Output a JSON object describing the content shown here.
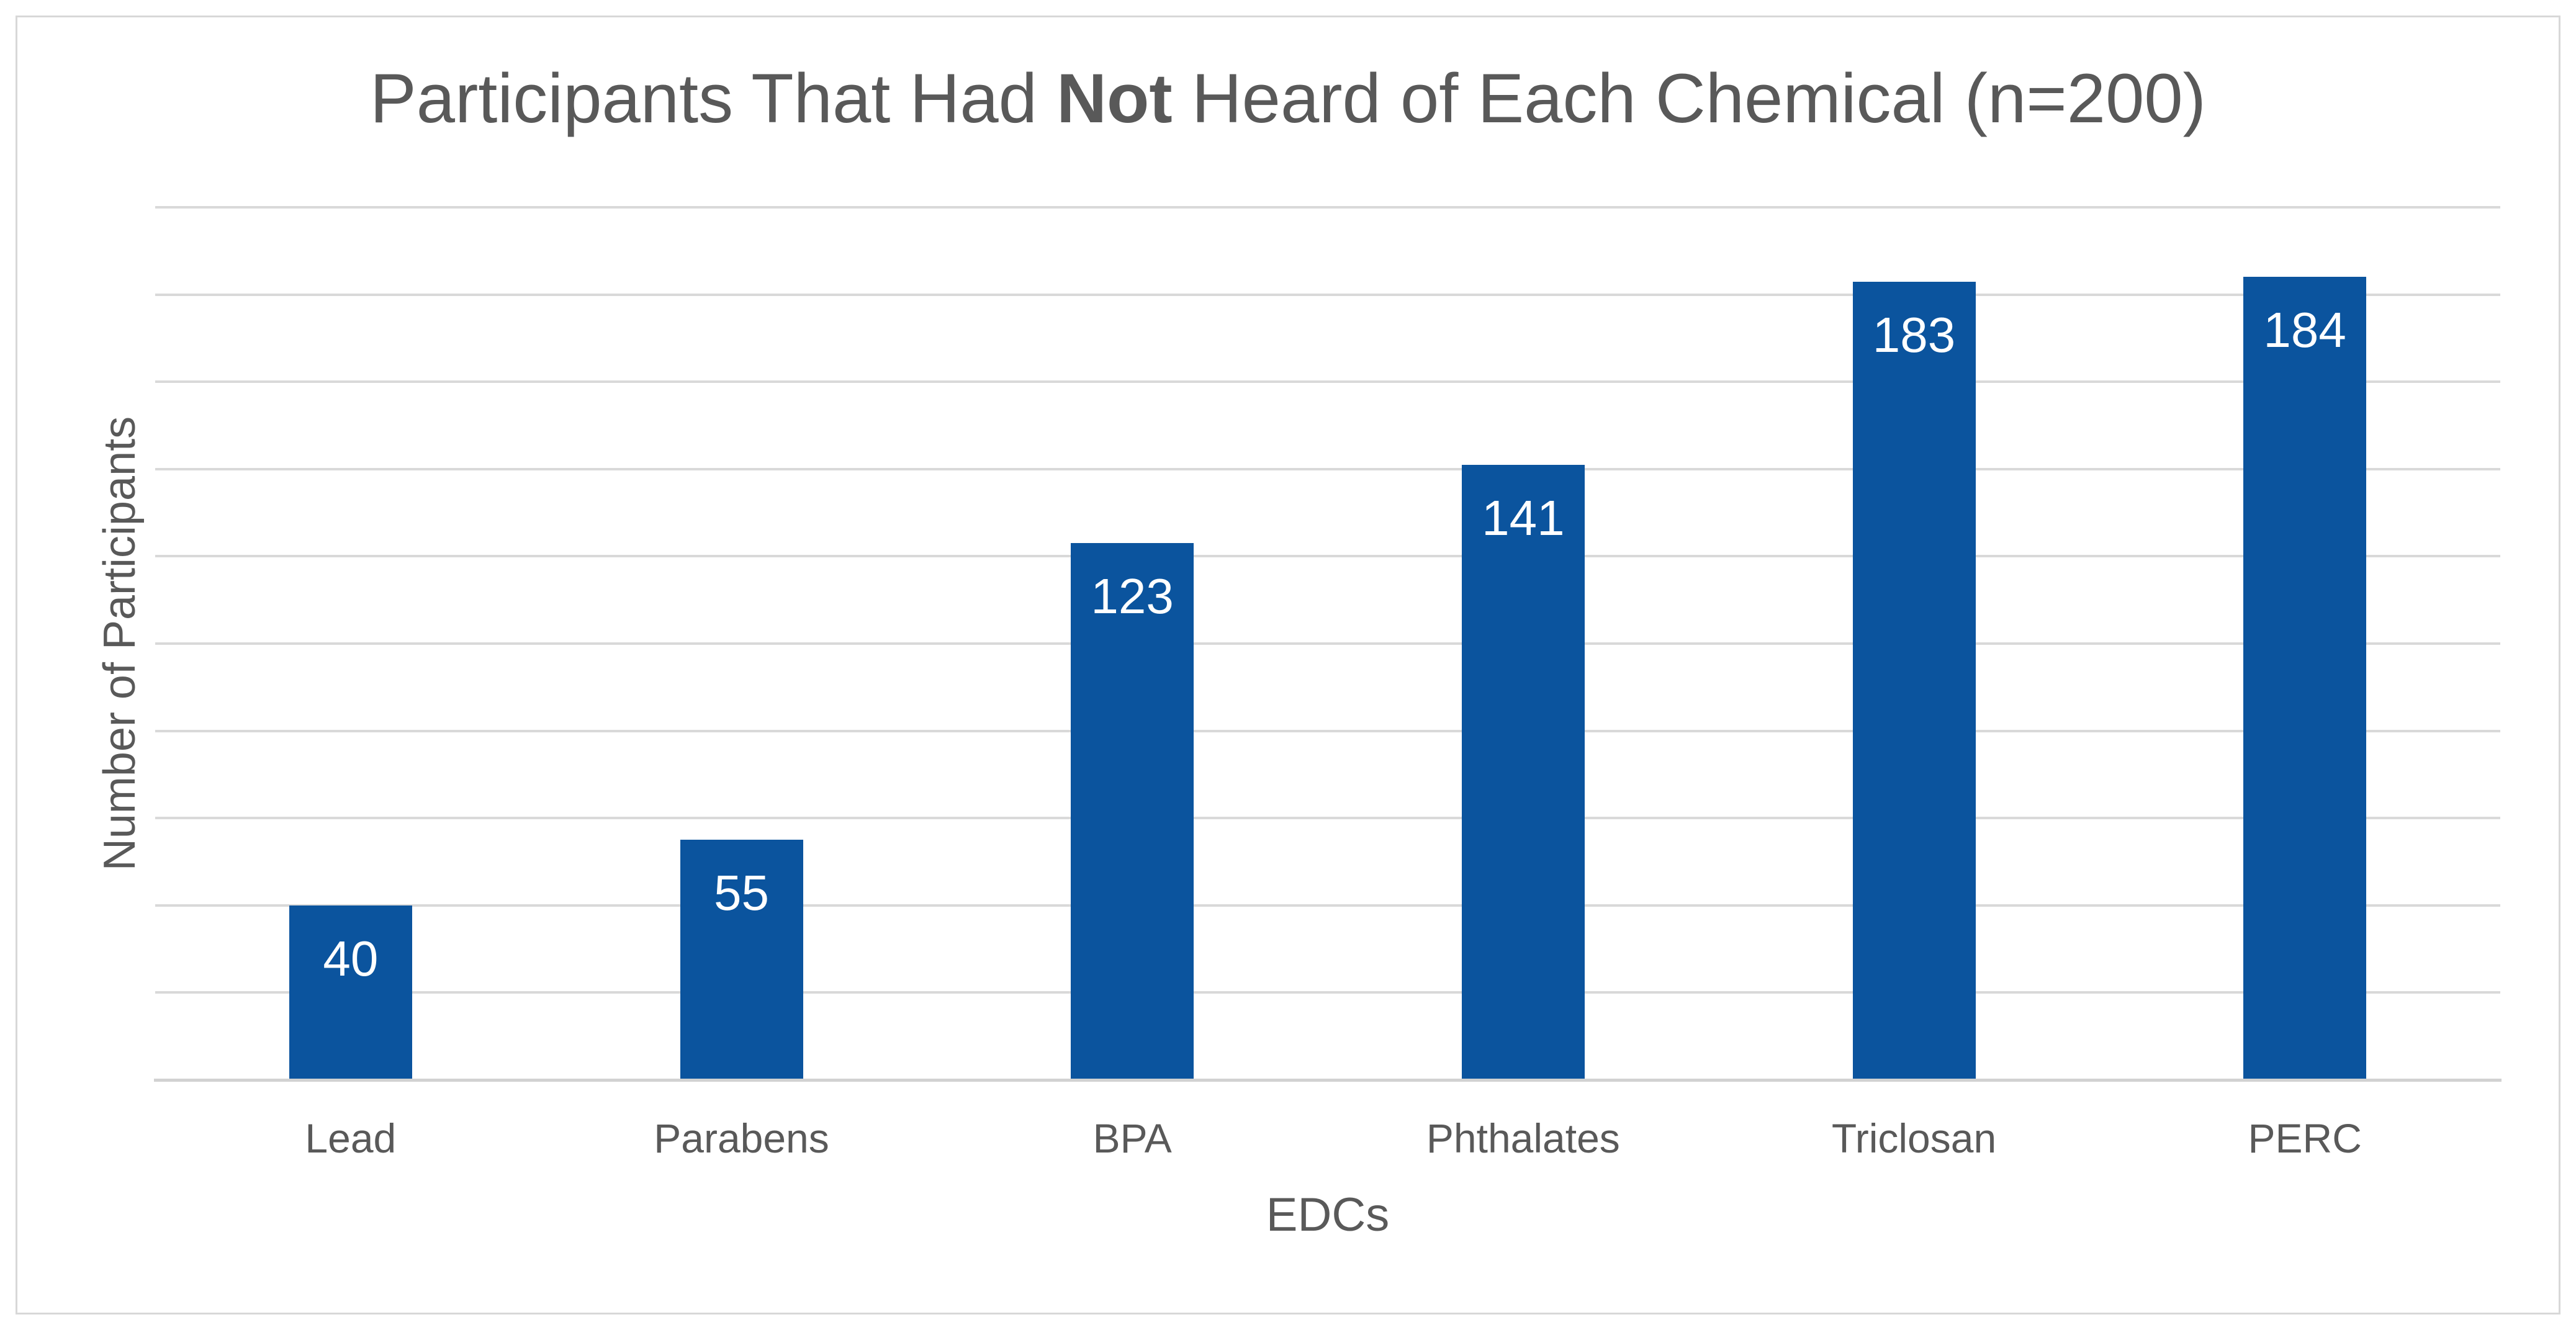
{
  "chart_data": {
    "type": "bar",
    "title": {
      "prefix": "Participants That Had ",
      "bold": "Not",
      "suffix": " Heard of Each Chemical (n=200)",
      "full": "Participants That Had Not Heard of Each Chemical (n=200)"
    },
    "categories": [
      "Lead",
      "Parabens",
      "BPA",
      "Phthalates",
      "Triclosan",
      "PERC"
    ],
    "values": [
      40,
      55,
      123,
      141,
      183,
      184
    ],
    "xlabel": "EDCs",
    "ylabel": "Number of Participants",
    "ylim": [
      0,
      200
    ],
    "gridline_step": 20,
    "grid": true,
    "y_tick_labels_visible": false,
    "legend": "none",
    "data_labels_position": "inside-top",
    "colors": {
      "bar": "#0b549e",
      "data_label_text": "#ffffff",
      "text": "#595959",
      "gridline": "#d9d9d9",
      "axis_line": "#d2d2d2",
      "chart_border": "#d8d8d8",
      "background": "#ffffff"
    }
  }
}
